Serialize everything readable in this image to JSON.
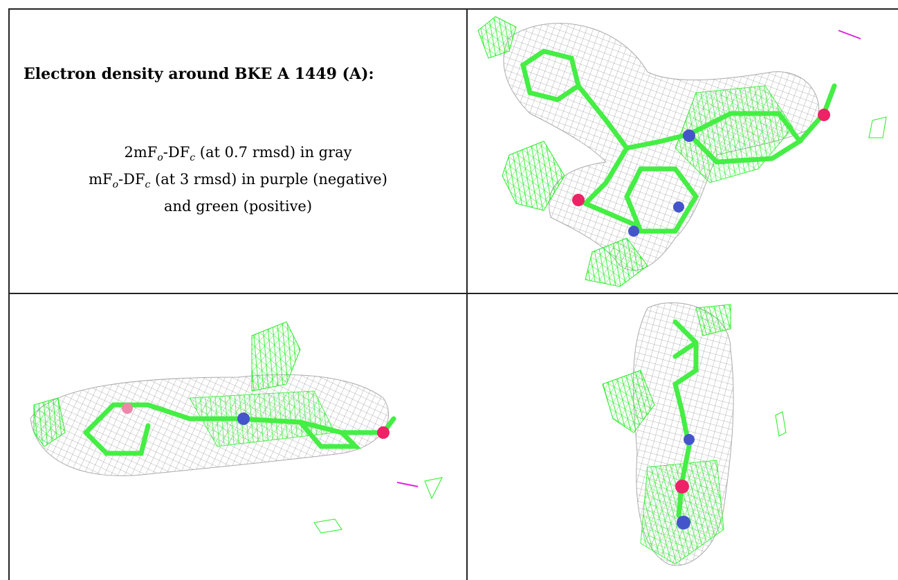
{
  "caption": {
    "title": "Electron density around BKE A 1449 (A):",
    "line1_prefix": "2mF",
    "line1_sub1": "o",
    "line1_mid": "-DF",
    "line1_sub2": "c",
    "line1_suffix": " (at 0.7 rmsd) in gray",
    "line2_prefix": "mF",
    "line2_sub1": "o",
    "line2_mid": "-DF",
    "line2_sub2": "c",
    "line2_suffix": " (at 3 rmsd) in purple (negative)",
    "line3": "and green (positive)"
  },
  "colors": {
    "mesh_2fofc": "#9a9a9a",
    "mesh_positive": "#22ee22",
    "mesh_negative": "#dd22dd",
    "carbon": "#44ee44",
    "nitrogen": "#4455cc",
    "oxygen": "#ee2266"
  },
  "panels": [
    {
      "name": "view-top-right",
      "description_icon": "molecule-render-icon"
    },
    {
      "name": "view-bottom-left",
      "description_icon": "molecule-render-icon"
    },
    {
      "name": "view-bottom-right",
      "description_icon": "molecule-render-icon"
    }
  ]
}
